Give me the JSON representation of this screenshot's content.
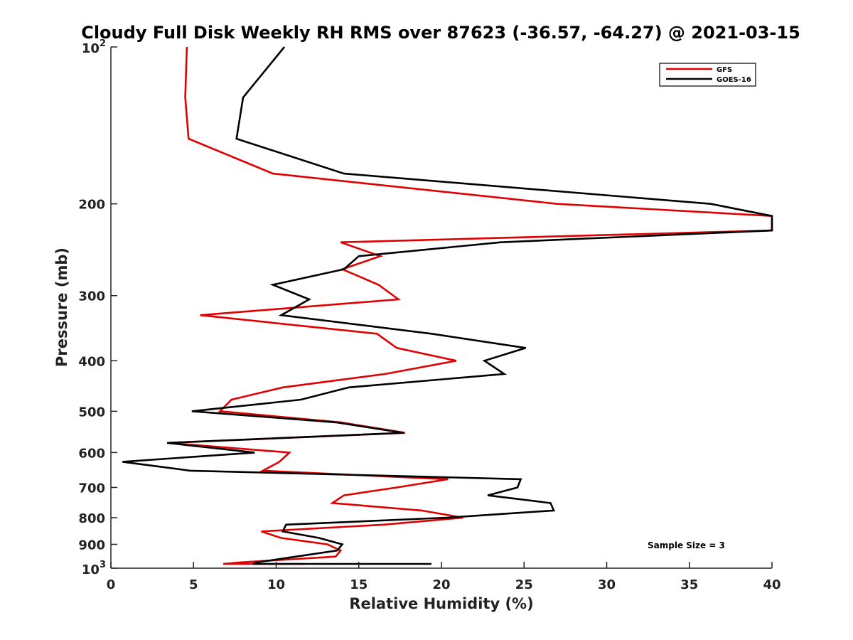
{
  "chart_data": {
    "type": "line",
    "title": "Cloudy Full Disk Weekly RH RMS over 87623 (-36.57, -64.27) @ 2021-03-15",
    "xlabel": "Relative Humidity (%)",
    "ylabel": "Pressure (mb)",
    "xlim": [
      0,
      40
    ],
    "ylim": [
      1000,
      100
    ],
    "y_scale": "log",
    "y_reversed": true,
    "grid": false,
    "legend_position": "top-right",
    "annotation": "Sample Size = 3",
    "x_ticks": [
      "0",
      "5",
      "10",
      "15",
      "20",
      "25",
      "30",
      "35",
      "40"
    ],
    "y_ticks": [
      {
        "value": 100,
        "label": "10",
        "sup": "2"
      },
      {
        "value": 200,
        "label": "200"
      },
      {
        "value": 300,
        "label": "300"
      },
      {
        "value": 400,
        "label": "400"
      },
      {
        "value": 500,
        "label": "500"
      },
      {
        "value": 600,
        "label": "600"
      },
      {
        "value": 700,
        "label": "700"
      },
      {
        "value": 800,
        "label": "800"
      },
      {
        "value": 900,
        "label": "900"
      },
      {
        "value": 1000,
        "label": "10",
        "sup": "3"
      }
    ],
    "series": [
      {
        "name": "GFS",
        "color": "#e00000",
        "points": [
          [
            4.6,
            100
          ],
          [
            4.5,
            125
          ],
          [
            4.7,
            150
          ],
          [
            9.8,
            175
          ],
          [
            27.0,
            200
          ],
          [
            40.0,
            211
          ],
          [
            40.0,
            225
          ],
          [
            13.9,
            237
          ],
          [
            16.3,
            252
          ],
          [
            14.0,
            267
          ],
          [
            16.2,
            286
          ],
          [
            17.4,
            305
          ],
          [
            5.4,
            327
          ],
          [
            16.1,
            355
          ],
          [
            17.3,
            378
          ],
          [
            20.9,
            400
          ],
          [
            16.6,
            424
          ],
          [
            10.4,
            450
          ],
          [
            7.3,
            475
          ],
          [
            6.6,
            500
          ],
          [
            13.9,
            525
          ],
          [
            17.8,
            550
          ],
          [
            3.5,
            575
          ],
          [
            10.8,
            600
          ],
          [
            10.2,
            625
          ],
          [
            9.2,
            650
          ],
          [
            20.4,
            675
          ],
          [
            17.3,
            700
          ],
          [
            14.1,
            725
          ],
          [
            13.4,
            750
          ],
          [
            18.8,
            775
          ],
          [
            21.3,
            800
          ],
          [
            16.5,
            825
          ],
          [
            9.1,
            850
          ],
          [
            10.3,
            875
          ],
          [
            13.1,
            900
          ],
          [
            13.9,
            925
          ],
          [
            13.6,
            950
          ],
          [
            7.8,
            975
          ],
          [
            6.8,
            990
          ],
          [
            10.1,
            1000
          ],
          [
            11.7,
            1008
          ]
        ]
      },
      {
        "name": "GOES-16",
        "color": "#000000",
        "points": [
          [
            10.5,
            100
          ],
          [
            8.0,
            125
          ],
          [
            7.6,
            150
          ],
          [
            14.1,
            175
          ],
          [
            36.3,
            200
          ],
          [
            40.0,
            211
          ],
          [
            40.0,
            225
          ],
          [
            23.6,
            237
          ],
          [
            15.0,
            252
          ],
          [
            14.1,
            267
          ],
          [
            9.8,
            286
          ],
          [
            12.0,
            305
          ],
          [
            10.3,
            327
          ],
          [
            19.4,
            355
          ],
          [
            25.1,
            378
          ],
          [
            22.6,
            400
          ],
          [
            23.8,
            424
          ],
          [
            14.4,
            450
          ],
          [
            11.5,
            475
          ],
          [
            4.9,
            500
          ],
          [
            13.6,
            525
          ],
          [
            17.7,
            550
          ],
          [
            3.4,
            575
          ],
          [
            8.7,
            600
          ],
          [
            0.7,
            625
          ],
          [
            4.8,
            650
          ],
          [
            24.8,
            675
          ],
          [
            24.6,
            700
          ],
          [
            22.8,
            725
          ],
          [
            26.6,
            750
          ],
          [
            26.8,
            775
          ],
          [
            20.3,
            800
          ],
          [
            10.6,
            825
          ],
          [
            10.4,
            850
          ],
          [
            12.6,
            875
          ],
          [
            14.0,
            900
          ],
          [
            13.7,
            925
          ],
          [
            11.2,
            950
          ],
          [
            8.8,
            975
          ],
          [
            8.6,
            990
          ],
          [
            11.4,
            1000
          ],
          [
            19.4,
            1008
          ]
        ]
      }
    ]
  }
}
